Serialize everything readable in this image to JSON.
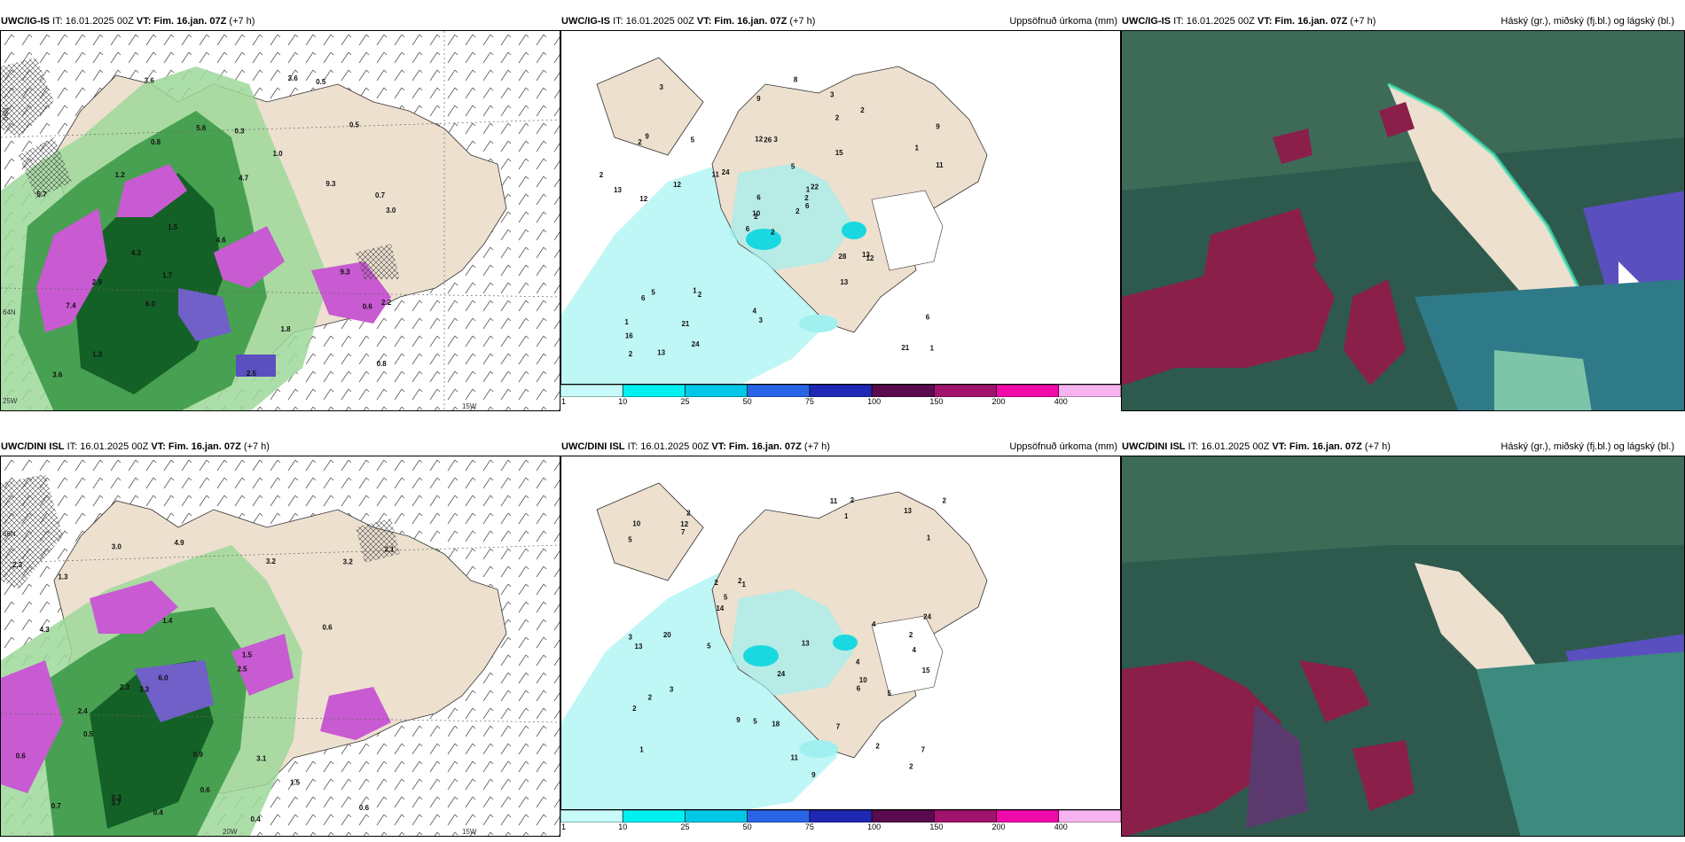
{
  "rows": [
    {
      "wind": {
        "model": "UWC/IG-IS",
        "it": "IT: 16.01.2025 00Z",
        "vt_label": "VT:",
        "vt": "Fim. 16.jan. 07Z",
        "lead": "(+7 h)",
        "right": ""
      },
      "precip": {
        "model": "UWC/IG-IS",
        "it": "IT: 16.01.2025 00Z",
        "vt_label": "VT:",
        "vt": "Fim. 16.jan. 07Z",
        "lead": "(+7 h)",
        "right": "Uppsöfnuð úrkoma (mm)"
      },
      "cloud": {
        "model": "UWC/IG-IS",
        "it": "IT: 16.01.2025 00Z",
        "vt_label": "VT:",
        "vt": "Fim. 16.jan. 07Z",
        "lead": "(+7 h)",
        "right": "Háský (gr.), miðský (fj.bl.) og lágský (bl.)"
      }
    },
    {
      "wind": {
        "model": "UWC/DINI ISL",
        "it": "IT: 16.01.2025 00Z",
        "vt_label": "VT:",
        "vt": "Fim. 16.jan. 07Z",
        "lead": "(+7 h)",
        "right": ""
      },
      "precip": {
        "model": "UWC/DINI ISL",
        "it": "IT: 16.01.2025 00Z",
        "vt_label": "VT:",
        "vt": "Fim. 16.jan. 07Z",
        "lead": "(+7 h)",
        "right": "Uppsöfnuð úrkoma (mm)"
      },
      "cloud": {
        "model": "UWC/DINI ISL",
        "it": "IT: 16.01.2025 00Z",
        "vt_label": "VT:",
        "vt": "Fim. 16.jan. 07Z",
        "lead": "(+7 h)",
        "right": "Háský (gr.), miðský (fj.bl.) og lágský (bl.)"
      }
    }
  ],
  "grid_labels": {
    "lat66": "66N",
    "lat64": "64N",
    "lon15w": "15W",
    "lon20w": "20W",
    "lon25w": "25W"
  },
  "precip_legend": {
    "labels": [
      "1",
      "10",
      "25",
      "50",
      "75",
      "100",
      "150",
      "200",
      "400"
    ],
    "colors": [
      "#c8fafa",
      "#00f0f0",
      "#00c8e6",
      "#2a64e6",
      "#1e28b4",
      "#5a0a4e",
      "#a0146e",
      "#f00aaa",
      "#f8b4f0"
    ]
  },
  "precip_numbers_top": [
    "2",
    "2",
    "2",
    "1",
    "1",
    "2",
    "3",
    "3",
    "2",
    "2",
    "3",
    "1",
    "12",
    "9",
    "6",
    "15",
    "13",
    "12",
    "5",
    "5",
    "24",
    "16",
    "21",
    "26",
    "22",
    "12",
    "9",
    "9",
    "13",
    "28",
    "11",
    "10",
    "4",
    "6",
    "5",
    "2",
    "1",
    "21",
    "6",
    "13",
    "8",
    "11",
    "12",
    "13",
    "24",
    "2",
    "2",
    "2",
    "3",
    "6",
    "6",
    "1"
  ],
  "precip_numbers_bottom": [
    "4",
    "4",
    "1",
    "2",
    "1",
    "2",
    "2",
    "1",
    "2",
    "9",
    "5",
    "3",
    "10",
    "7",
    "9",
    "24",
    "24",
    "13",
    "2",
    "3",
    "2",
    "13",
    "14",
    "15",
    "11",
    "12",
    "10",
    "13",
    "7",
    "4",
    "11",
    "7",
    "5",
    "5",
    "2",
    "5",
    "6",
    "20",
    "18",
    "2",
    "1",
    "2",
    "2",
    "5"
  ],
  "wind_values_top": [
    "0.8",
    "0.7",
    "1.0",
    "3.0",
    "1.5",
    "2.2",
    "1.7",
    "3.6",
    "0.6",
    "0.5",
    "1.2",
    "9.3",
    "9.3",
    "6.0",
    "7.4",
    "4.6",
    "4.3",
    "5.7",
    "3.6",
    "5.6",
    "0.8",
    "0.3",
    "1.3",
    "2.9",
    "4.7",
    "0.5",
    "3.6",
    "1.8",
    "2.5"
  ],
  "wind_values_bottom": [
    "0.4",
    "0.4",
    "0.3",
    "1.5",
    "3.0",
    "1.3",
    "2.3",
    "0.6",
    "4.9",
    "1.4",
    "3.2",
    "0.6",
    "6.0",
    "0.9",
    "3.2",
    "2.5",
    "4.3",
    "3.7",
    "3.3",
    "2.3",
    "3.1",
    "2.1",
    "1.5",
    "0.7",
    "0.6",
    "2.4",
    "0.6",
    "0.5"
  ]
}
